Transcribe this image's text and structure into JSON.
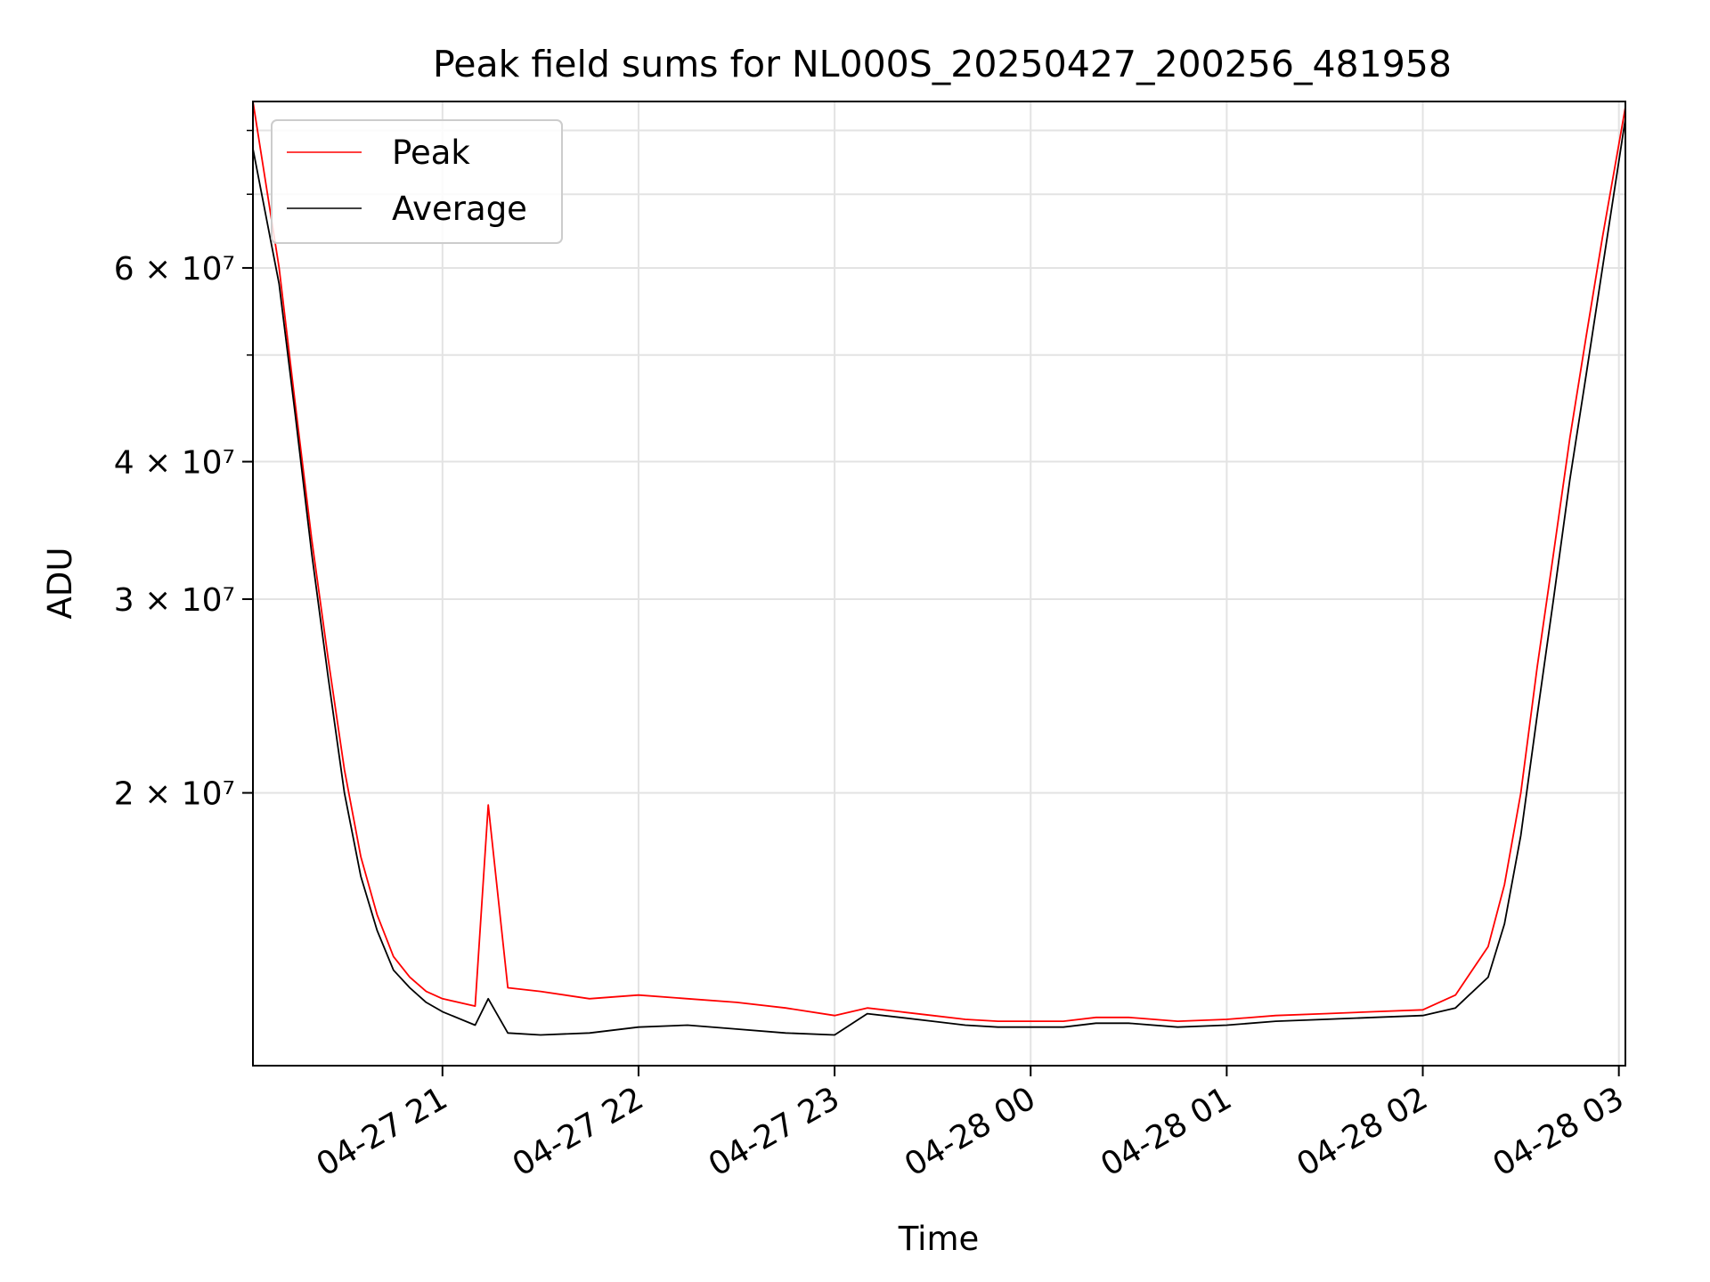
{
  "chart_data": {
    "type": "line",
    "title": "Peak field sums for NL000S_20250427_200256_481958",
    "xlabel": "Time",
    "ylabel": "ADU",
    "y_scale": "log",
    "grid": true,
    "legend_position": "upper-left",
    "xlim": [
      "2025-04-27 20:02",
      "2025-04-28 03:02"
    ],
    "ylim": [
      11300000,
      85000000
    ],
    "x_ticks": [
      {
        "value": "2025-04-27 21:00",
        "label": "04-27 21"
      },
      {
        "value": "2025-04-27 22:00",
        "label": "04-27 22"
      },
      {
        "value": "2025-04-27 23:00",
        "label": "04-27 23"
      },
      {
        "value": "2025-04-28 00:00",
        "label": "04-28 00"
      },
      {
        "value": "2025-04-28 01:00",
        "label": "04-28 01"
      },
      {
        "value": "2025-04-28 02:00",
        "label": "04-28 02"
      },
      {
        "value": "2025-04-28 03:00",
        "label": "04-28 03"
      }
    ],
    "y_ticks": [
      {
        "value": 20000000,
        "label": "2 × 10⁷"
      },
      {
        "value": 30000000,
        "label": "3 × 10⁷"
      },
      {
        "value": 40000000,
        "label": "4 × 10⁷"
      },
      {
        "value": 60000000,
        "label": "6 × 10⁷"
      }
    ],
    "y_minor_ticks": [
      50000000,
      70000000,
      80000000
    ],
    "series": [
      {
        "name": "Peak",
        "color": "#ff0000",
        "x": [
          "2025-04-27 20:02",
          "2025-04-27 20:10",
          "2025-04-27 20:15",
          "2025-04-27 20:20",
          "2025-04-27 20:25",
          "2025-04-27 20:30",
          "2025-04-27 20:35",
          "2025-04-27 20:40",
          "2025-04-27 20:45",
          "2025-04-27 20:50",
          "2025-04-27 20:55",
          "2025-04-27 21:00",
          "2025-04-27 21:10",
          "2025-04-27 21:14",
          "2025-04-27 21:20",
          "2025-04-27 21:30",
          "2025-04-27 21:45",
          "2025-04-27 22:00",
          "2025-04-27 22:15",
          "2025-04-27 22:30",
          "2025-04-27 22:45",
          "2025-04-27 23:00",
          "2025-04-27 23:10",
          "2025-04-27 23:20",
          "2025-04-27 23:30",
          "2025-04-27 23:40",
          "2025-04-27 23:50",
          "2025-04-28 00:00",
          "2025-04-28 00:10",
          "2025-04-28 00:20",
          "2025-04-28 00:30",
          "2025-04-28 00:45",
          "2025-04-28 01:00",
          "2025-04-28 01:15",
          "2025-04-28 01:30",
          "2025-04-28 01:45",
          "2025-04-28 02:00",
          "2025-04-28 02:10",
          "2025-04-28 02:20",
          "2025-04-28 02:25",
          "2025-04-28 02:30",
          "2025-04-28 02:35",
          "2025-04-28 02:40",
          "2025-04-28 02:45",
          "2025-04-28 02:50",
          "2025-04-28 02:55",
          "2025-04-28 03:02"
        ],
        "values": [
          85000000,
          60000000,
          45000000,
          34000000,
          26500000,
          21000000,
          17500000,
          15500000,
          14200000,
          13600000,
          13200000,
          13000000,
          12800000,
          19500000,
          13300000,
          13200000,
          13000000,
          13100000,
          13000000,
          12900000,
          12750000,
          12550000,
          12750000,
          12650000,
          12550000,
          12450000,
          12400000,
          12400000,
          12400000,
          12500000,
          12500000,
          12400000,
          12450000,
          12550000,
          12600000,
          12650000,
          12700000,
          13100000,
          14500000,
          16500000,
          20000000,
          26000000,
          33000000,
          42000000,
          52000000,
          64000000,
          84000000
        ]
      },
      {
        "name": "Average",
        "color": "#000000",
        "x": [
          "2025-04-27 20:02",
          "2025-04-27 20:10",
          "2025-04-27 20:15",
          "2025-04-27 20:20",
          "2025-04-27 20:25",
          "2025-04-27 20:30",
          "2025-04-27 20:35",
          "2025-04-27 20:40",
          "2025-04-27 20:45",
          "2025-04-27 20:50",
          "2025-04-27 20:55",
          "2025-04-27 21:00",
          "2025-04-27 21:10",
          "2025-04-27 21:14",
          "2025-04-27 21:20",
          "2025-04-27 21:30",
          "2025-04-27 21:45",
          "2025-04-27 22:00",
          "2025-04-27 22:15",
          "2025-04-27 22:30",
          "2025-04-27 22:45",
          "2025-04-27 23:00",
          "2025-04-27 23:10",
          "2025-04-27 23:20",
          "2025-04-27 23:30",
          "2025-04-27 23:40",
          "2025-04-27 23:50",
          "2025-04-28 00:00",
          "2025-04-28 00:10",
          "2025-04-28 00:20",
          "2025-04-28 00:30",
          "2025-04-28 00:45",
          "2025-04-28 01:00",
          "2025-04-28 01:15",
          "2025-04-28 01:30",
          "2025-04-28 01:45",
          "2025-04-28 02:00",
          "2025-04-28 02:10",
          "2025-04-28 02:20",
          "2025-04-28 02:25",
          "2025-04-28 02:30",
          "2025-04-28 02:35",
          "2025-04-28 02:40",
          "2025-04-28 02:45",
          "2025-04-28 02:50",
          "2025-04-28 02:55",
          "2025-04-28 03:02"
        ],
        "values": [
          77000000,
          58000000,
          44000000,
          33000000,
          25500000,
          20000000,
          16800000,
          15000000,
          13800000,
          13300000,
          12900000,
          12650000,
          12300000,
          13000000,
          12100000,
          12050000,
          12100000,
          12250000,
          12300000,
          12200000,
          12100000,
          12050000,
          12600000,
          12500000,
          12400000,
          12300000,
          12250000,
          12250000,
          12250000,
          12350000,
          12350000,
          12250000,
          12300000,
          12400000,
          12450000,
          12500000,
          12550000,
          12750000,
          13600000,
          15200000,
          18300000,
          23500000,
          30000000,
          38500000,
          48000000,
          60000000,
          82000000
        ]
      }
    ]
  }
}
